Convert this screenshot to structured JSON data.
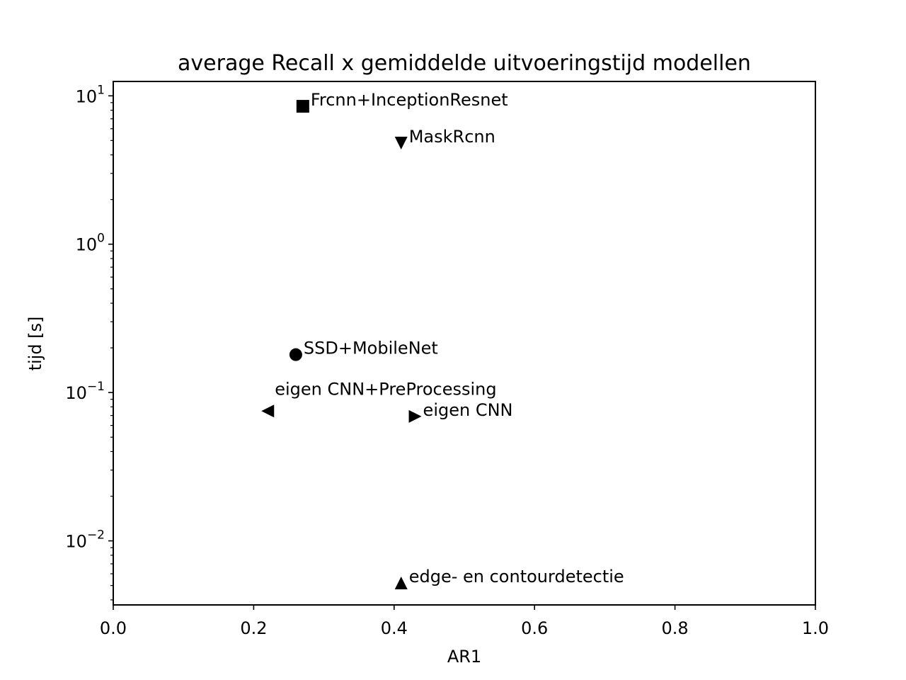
{
  "chart_data": {
    "type": "scatter",
    "title": "average Recall x gemiddelde uitvoeringstijd modellen",
    "xlabel": "AR1",
    "ylabel": "tijd [s]",
    "xlim": [
      0.0,
      1.0
    ],
    "ylim": [
      0.0037,
      12.5
    ],
    "yscale": "log",
    "grid": false,
    "legend": "none",
    "x_ticks": [
      "0.0",
      "0.2",
      "0.4",
      "0.6",
      "0.8",
      "1.0"
    ],
    "y_ticks": [
      {
        "value": 0.01,
        "base": "10",
        "exponent": "−2"
      },
      {
        "value": 0.1,
        "base": "10",
        "exponent": "−1"
      },
      {
        "value": 1,
        "base": "10",
        "exponent": "0"
      },
      {
        "value": 10,
        "base": "10",
        "exponent": "1"
      }
    ],
    "points": [
      {
        "label": "Frcnn+InceptionResnet",
        "x": 0.27,
        "y": 8.5,
        "marker": "square"
      },
      {
        "label": "MaskRcnn",
        "x": 0.41,
        "y": 4.8,
        "marker": "triangle-down"
      },
      {
        "label": "SSD+MobileNet",
        "x": 0.26,
        "y": 0.18,
        "marker": "circle"
      },
      {
        "label": "eigen CNN+PreProcessing",
        "x": 0.22,
        "y": 0.075,
        "marker": "triangle-left"
      },
      {
        "label": "eigen CNN",
        "x": 0.43,
        "y": 0.069,
        "marker": "triangle-right"
      },
      {
        "label": "edge- en contourdetectie",
        "x": 0.41,
        "y": 0.0052,
        "marker": "triangle-up"
      }
    ],
    "marker_color": "#000000"
  }
}
